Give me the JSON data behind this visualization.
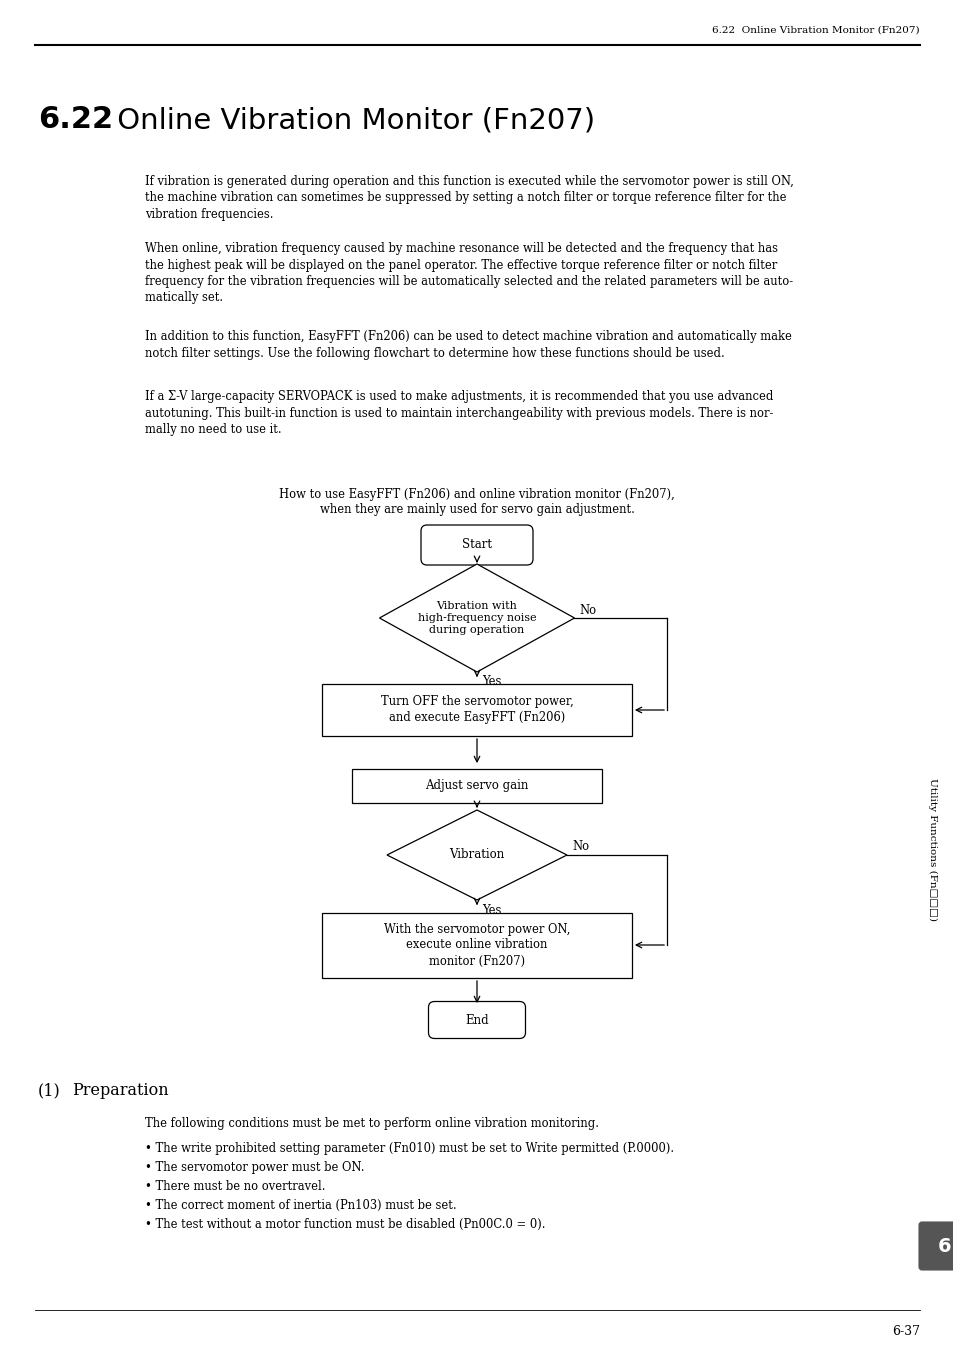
{
  "page_header": "6.22  Online Vibration Monitor (Fn207)",
  "section_number": "6.22",
  "section_title": " Online Vibration Monitor (Fn207)",
  "paragraphs": [
    "If vibration is generated during operation and this function is executed while the servomotor power is still ON,\nthe machine vibration can sometimes be suppressed by setting a notch filter or torque reference filter for the\nvibration frequencies.",
    "When online, vibration frequency caused by machine resonance will be detected and the frequency that has\nthe highest peak will be displayed on the panel operator. The effective torque reference filter or notch filter\nfrequency for the vibration frequencies will be automatically selected and the related parameters will be auto-\nmatically set.",
    "In addition to this function, EasyFFT (Fn206) can be used to detect machine vibration and automatically make\nnotch filter settings. Use the following flowchart to determine how these functions should be used.",
    "If a Σ-V large-capacity SERVOPACK is used to make adjustments, it is recommended that you use advanced\nautotuning. This built-in function is used to maintain interchangeability with previous models. There is nor-\nmally no need to use it."
  ],
  "flowchart_caption": "How to use EasyFFT (Fn206) and online vibration monitor (Fn207),\nwhen they are mainly used for servo gain adjustment.",
  "preparation_title": "Preparation",
  "preparation_intro": "The following conditions must be met to perform online vibration monitoring.",
  "preparation_bullets": [
    "• The write prohibited setting parameter (Fn010) must be set to Write permitted (P.0000).",
    "• The servomotor power must be ON.",
    "• There must be no overtravel.",
    "• The correct moment of inertia (Pn103) must be set.",
    "• The test without a motor function must be disabled (Pn00C.0 = 0)."
  ],
  "footer_text": "6-37",
  "sidebar_text": "Utility Functions (Fn□□□)",
  "tab_number": "6",
  "bg": "#ffffff",
  "fg": "#000000"
}
